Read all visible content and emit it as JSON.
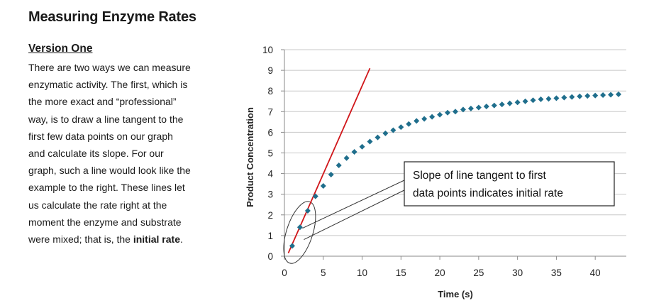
{
  "page": {
    "title": "Measuring Enzyme Rates",
    "heading": "Version One",
    "paragraph_lines": [
      {
        "text": "There are two ways we can measure"
      },
      {
        "text": "enzymatic activity.  The first, which is"
      },
      {
        "text": "the more exact and “professional”"
      },
      {
        "text": "way, is to draw a line tangent to the"
      },
      {
        "text": "first few data points on our graph"
      },
      {
        "text": "and calculate its slope.  For our"
      },
      {
        "text": "graph, such a line would look like the"
      },
      {
        "text": "example to the right.  These lines let"
      },
      {
        "text": "us calculate the rate right at the"
      },
      {
        "text": "moment the enzyme and substrate"
      },
      {
        "text": "were mixed; that is, the ",
        "bold": "initial rate",
        "after": "."
      }
    ]
  },
  "chart_data": {
    "type": "scatter",
    "xlabel": "Time (s)",
    "ylabel": "Product Concentration",
    "xlim": [
      0,
      44
    ],
    "ylim": [
      0,
      10
    ],
    "x_ticks": [
      0,
      5,
      10,
      15,
      20,
      25,
      30,
      35,
      40
    ],
    "y_ticks": [
      0,
      1,
      2,
      3,
      4,
      5,
      6,
      7,
      8,
      9,
      10
    ],
    "grid": "horizontal",
    "colors": {
      "points": "#1f6e8c",
      "tangent": "#d0161a",
      "grid": "#c8c8c8",
      "axis": "#8a8a8a"
    },
    "series": [
      {
        "marker": "diamond",
        "x": [
          1,
          2,
          3,
          4,
          5,
          6,
          7,
          8,
          9,
          10,
          11,
          12,
          13,
          14,
          15,
          16,
          17,
          18,
          19,
          20,
          21,
          22,
          23,
          24,
          25,
          26,
          27,
          28,
          29,
          30,
          31,
          32,
          33,
          34,
          35,
          36,
          37,
          38,
          39,
          40,
          41,
          42,
          43
        ],
        "y": [
          0.5,
          1.4,
          2.2,
          2.9,
          3.4,
          3.95,
          4.4,
          4.75,
          5.05,
          5.3,
          5.55,
          5.75,
          5.95,
          6.1,
          6.25,
          6.4,
          6.55,
          6.65,
          6.75,
          6.85,
          6.95,
          7.0,
          7.1,
          7.15,
          7.2,
          7.25,
          7.3,
          7.35,
          7.4,
          7.45,
          7.5,
          7.55,
          7.6,
          7.62,
          7.65,
          7.68,
          7.71,
          7.74,
          7.76,
          7.78,
          7.8,
          7.82,
          7.84
        ]
      }
    ],
    "tangent_line": {
      "x": [
        0.5,
        11
      ],
      "y": [
        0.15,
        9.1
      ]
    },
    "annotation": {
      "lines": [
        "Slope of line tangent to first",
        "data points indicates initial rate"
      ],
      "highlight_region": {
        "x": [
          0,
          3
        ],
        "y": [
          0,
          2.3
        ]
      }
    }
  }
}
